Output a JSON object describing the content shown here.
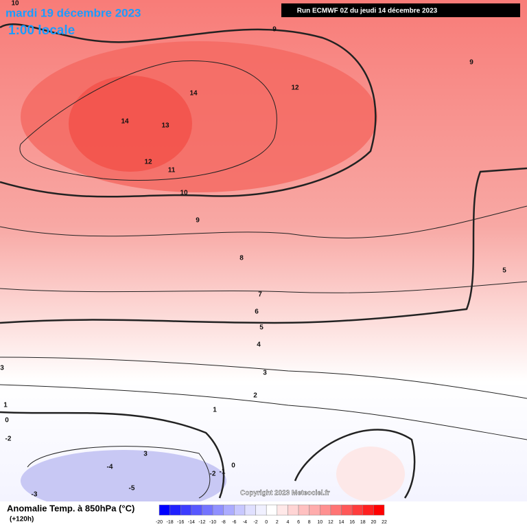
{
  "header": {
    "date": "mardi 19 décembre 2023",
    "time": "1:00 locale",
    "run": "Run ECMWF 0Z du jeudi 14 décembre 2023"
  },
  "contour_labels": [
    10,
    9,
    9,
    12,
    14,
    14,
    13,
    12,
    11,
    10,
    9,
    8,
    7,
    6,
    5,
    5,
    4,
    3,
    3,
    2,
    1,
    1,
    0,
    -2,
    3,
    -4,
    0,
    -1,
    -2,
    -5,
    -3
  ],
  "footer": {
    "title": "Anomalie Temp. à 850hPa (°C)",
    "lead": "(+120h)",
    "copyright": "Copyright 2023 Meteociel.fr"
  },
  "colorbar": {
    "ticks": [
      -20,
      -18,
      -16,
      -14,
      -12,
      -10,
      -8,
      -6,
      -4,
      -2,
      0,
      2,
      4,
      6,
      8,
      10,
      12,
      14,
      16,
      18,
      20,
      22
    ],
    "colors": [
      "#0000ff",
      "#2020ff",
      "#3c3cff",
      "#5858ff",
      "#7474ff",
      "#9090ff",
      "#acacff",
      "#c8c8ff",
      "#e0e0ff",
      "#f0f0ff",
      "#ffffff",
      "#ffe8e8",
      "#ffd4d4",
      "#ffc0c0",
      "#ffacac",
      "#ff9090",
      "#ff7474",
      "#ff5858",
      "#ff3c3c",
      "#ff2020",
      "#ff0000"
    ]
  }
}
